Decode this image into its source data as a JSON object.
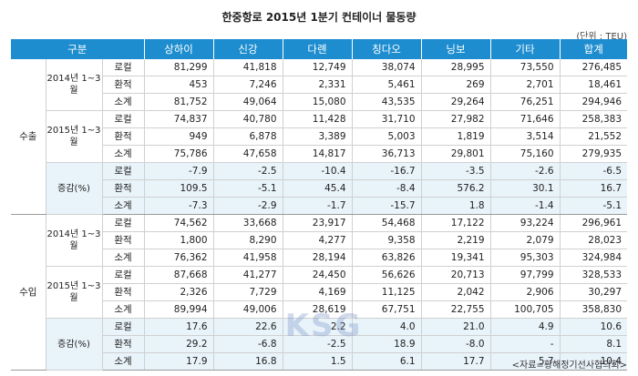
{
  "title": "한중항로 2015년 1분기 컨테이너 물동량",
  "unit": "(단위 : TEU)",
  "source": "<자료=황해정기선사협의회>",
  "watermark": "KSG",
  "headers": [
    "구분",
    "상하이",
    "신강",
    "다롄",
    "칭다오",
    "닝보",
    "기타",
    "합계"
  ],
  "groups": [
    {
      "label": "수출",
      "blocks": [
        {
          "period": "2014년 1~3월",
          "blue": false,
          "rows": [
            {
              "item": "로컬",
              "values": [
                "81,299",
                "41,818",
                "12,749",
                "38,074",
                "28,995",
                "73,550",
                "276,485"
              ]
            },
            {
              "item": "환적",
              "values": [
                "453",
                "7,246",
                "2,331",
                "5,461",
                "269",
                "2,701",
                "18,461"
              ]
            },
            {
              "item": "소계",
              "values": [
                "81,752",
                "49,064",
                "15,080",
                "43,535",
                "29,264",
                "76,251",
                "294,946"
              ]
            }
          ]
        },
        {
          "period": "2015년 1~3월",
          "blue": false,
          "rows": [
            {
              "item": "로컬",
              "values": [
                "74,837",
                "40,780",
                "11,428",
                "31,710",
                "27,982",
                "71,646",
                "258,383"
              ]
            },
            {
              "item": "환적",
              "values": [
                "949",
                "6,878",
                "3,389",
                "5,003",
                "1,819",
                "3,514",
                "21,552"
              ]
            },
            {
              "item": "소계",
              "values": [
                "75,786",
                "47,658",
                "14,817",
                "36,713",
                "29,801",
                "75,160",
                "279,935"
              ]
            }
          ]
        },
        {
          "period": "증감(%)",
          "blue": true,
          "rows": [
            {
              "item": "로컬",
              "values": [
                "-7.9",
                "-2.5",
                "-10.4",
                "-16.7",
                "-3.5",
                "-2.6",
                "-6.5"
              ]
            },
            {
              "item": "환적",
              "values": [
                "109.5",
                "-5.1",
                "45.4",
                "-8.4",
                "576.2",
                "30.1",
                "16.7"
              ]
            },
            {
              "item": "소계",
              "values": [
                "-7.3",
                "-2.9",
                "-1.7",
                "-15.7",
                "1.8",
                "-1.4",
                "-5.1"
              ]
            }
          ]
        }
      ]
    },
    {
      "label": "수입",
      "blocks": [
        {
          "period": "2014년 1~3월",
          "blue": false,
          "rows": [
            {
              "item": "로컬",
              "values": [
                "74,562",
                "33,668",
                "23,917",
                "54,468",
                "17,122",
                "93,224",
                "296,961"
              ]
            },
            {
              "item": "환적",
              "values": [
                "1,800",
                "8,290",
                "4,277",
                "9,358",
                "2,219",
                "2,079",
                "28,023"
              ]
            },
            {
              "item": "소계",
              "values": [
                "76,362",
                "41,958",
                "28,194",
                "63,826",
                "19,341",
                "95,303",
                "324,984"
              ]
            }
          ]
        },
        {
          "period": "2015년 1~3월",
          "blue": false,
          "rows": [
            {
              "item": "로컬",
              "values": [
                "87,668",
                "41,277",
                "24,450",
                "56,626",
                "20,713",
                "97,799",
                "328,533"
              ]
            },
            {
              "item": "환적",
              "values": [
                "2,326",
                "7,729",
                "4,169",
                "11,125",
                "2,042",
                "2,906",
                "30,297"
              ]
            },
            {
              "item": "소계",
              "values": [
                "89,994",
                "49,006",
                "28,619",
                "67,751",
                "22,755",
                "100,705",
                "358,830"
              ]
            }
          ]
        },
        {
          "period": "증감(%)",
          "blue": true,
          "rows": [
            {
              "item": "로컬",
              "values": [
                "17.6",
                "22.6",
                "2.2",
                "4.0",
                "21.0",
                "4.9",
                "10.6"
              ]
            },
            {
              "item": "환적",
              "values": [
                "29.2",
                "-6.8",
                "-2.5",
                "18.9",
                "-8.0",
                "-",
                "8.1"
              ]
            },
            {
              "item": "소계",
              "values": [
                "17.9",
                "16.8",
                "1.5",
                "6.1",
                "17.7",
                "5.7",
                "10.4"
              ]
            }
          ]
        }
      ]
    }
  ]
}
